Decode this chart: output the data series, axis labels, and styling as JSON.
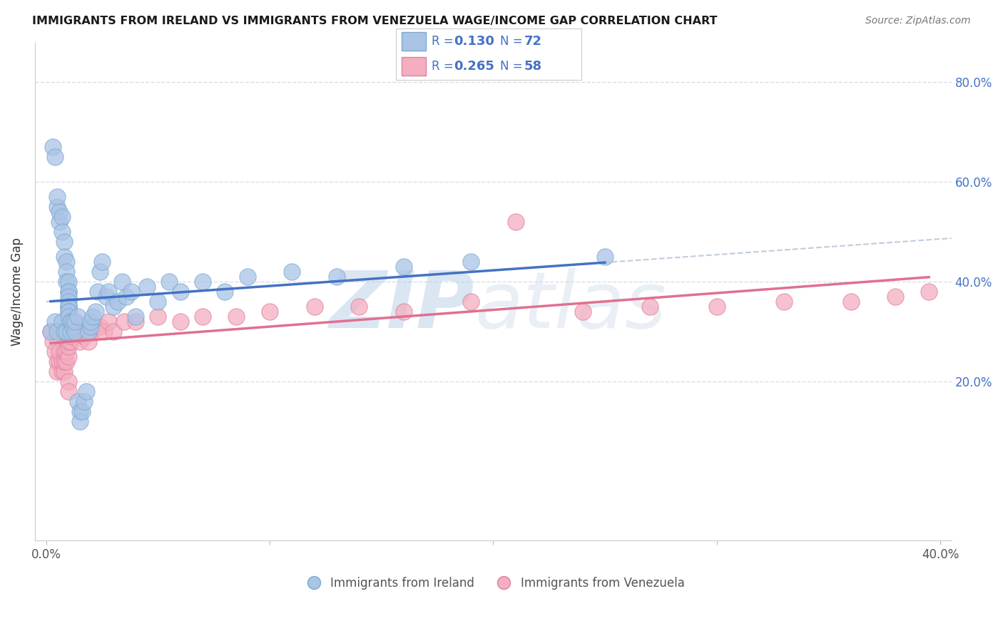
{
  "title": "IMMIGRANTS FROM IRELAND VS IMMIGRANTS FROM VENEZUELA WAGE/INCOME GAP CORRELATION CHART",
  "source": "Source: ZipAtlas.com",
  "ylabel": "Wage/Income Gap",
  "legend_label1": "Immigrants from Ireland",
  "legend_label2": "Immigrants from Venezuela",
  "legend_R1": "0.130",
  "legend_N1": "72",
  "legend_R2": "0.265",
  "legend_N2": "58",
  "color_ireland_fill": "#aac4e6",
  "color_ireland_edge": "#7aaad0",
  "color_venezuela_fill": "#f4aec0",
  "color_venezuela_edge": "#e080a0",
  "color_line_ireland": "#4472c4",
  "color_line_venezuela": "#e07090",
  "color_legend_text": "#4472c4",
  "color_dashed": "#b8c8d8",
  "xlim": [
    -0.005,
    0.405
  ],
  "ylim": [
    -0.12,
    0.88
  ],
  "xticks": [
    0.0,
    0.1,
    0.2,
    0.3,
    0.4
  ],
  "xtick_labels": [
    "0.0%",
    "",
    "",
    "",
    "40.0%"
  ],
  "ytick_positions": [
    0.2,
    0.4,
    0.6,
    0.8
  ],
  "ytick_labels": [
    "20.0%",
    "40.0%",
    "60.0%",
    "80.0%"
  ],
  "grid_color": "#d8dde8",
  "ireland_x": [
    0.002,
    0.003,
    0.004,
    0.004,
    0.005,
    0.005,
    0.005,
    0.006,
    0.006,
    0.007,
    0.007,
    0.007,
    0.008,
    0.008,
    0.008,
    0.009,
    0.009,
    0.009,
    0.009,
    0.01,
    0.01,
    0.01,
    0.01,
    0.01,
    0.01,
    0.01,
    0.01,
    0.01,
    0.01,
    0.01,
    0.011,
    0.011,
    0.011,
    0.012,
    0.012,
    0.013,
    0.013,
    0.014,
    0.014,
    0.015,
    0.015,
    0.016,
    0.017,
    0.018,
    0.019,
    0.02,
    0.02,
    0.021,
    0.022,
    0.023,
    0.024,
    0.025,
    0.027,
    0.028,
    0.03,
    0.032,
    0.034,
    0.036,
    0.038,
    0.04,
    0.045,
    0.05,
    0.055,
    0.06,
    0.07,
    0.08,
    0.09,
    0.11,
    0.13,
    0.16,
    0.19,
    0.25
  ],
  "ireland_y": [
    0.3,
    0.67,
    0.65,
    0.32,
    0.55,
    0.57,
    0.3,
    0.52,
    0.54,
    0.53,
    0.5,
    0.32,
    0.48,
    0.45,
    0.3,
    0.44,
    0.42,
    0.4,
    0.3,
    0.4,
    0.38,
    0.38,
    0.37,
    0.36,
    0.35,
    0.35,
    0.35,
    0.34,
    0.34,
    0.33,
    0.32,
    0.32,
    0.3,
    0.31,
    0.32,
    0.3,
    0.32,
    0.33,
    0.16,
    0.14,
    0.12,
    0.14,
    0.16,
    0.18,
    0.3,
    0.31,
    0.32,
    0.33,
    0.34,
    0.38,
    0.42,
    0.44,
    0.37,
    0.38,
    0.35,
    0.36,
    0.4,
    0.37,
    0.38,
    0.33,
    0.39,
    0.36,
    0.4,
    0.38,
    0.4,
    0.38,
    0.41,
    0.42,
    0.41,
    0.43,
    0.44,
    0.45
  ],
  "venezuela_x": [
    0.002,
    0.003,
    0.004,
    0.005,
    0.005,
    0.006,
    0.006,
    0.007,
    0.007,
    0.008,
    0.008,
    0.008,
    0.009,
    0.009,
    0.01,
    0.01,
    0.01,
    0.01,
    0.01,
    0.011,
    0.011,
    0.012,
    0.012,
    0.013,
    0.013,
    0.014,
    0.015,
    0.016,
    0.017,
    0.018,
    0.019,
    0.02,
    0.022,
    0.024,
    0.026,
    0.028,
    0.03,
    0.035,
    0.04,
    0.05,
    0.06,
    0.07,
    0.085,
    0.1,
    0.12,
    0.14,
    0.16,
    0.19,
    0.21,
    0.24,
    0.27,
    0.3,
    0.33,
    0.36,
    0.38,
    0.395,
    0.01,
    0.01
  ],
  "venezuela_y": [
    0.3,
    0.28,
    0.26,
    0.24,
    0.22,
    0.24,
    0.26,
    0.22,
    0.24,
    0.22,
    0.24,
    0.26,
    0.24,
    0.26,
    0.25,
    0.27,
    0.28,
    0.29,
    0.3,
    0.28,
    0.3,
    0.29,
    0.31,
    0.3,
    0.32,
    0.3,
    0.28,
    0.3,
    0.29,
    0.3,
    0.28,
    0.3,
    0.31,
    0.31,
    0.3,
    0.32,
    0.3,
    0.32,
    0.32,
    0.33,
    0.32,
    0.33,
    0.33,
    0.34,
    0.35,
    0.35,
    0.34,
    0.36,
    0.52,
    0.34,
    0.35,
    0.35,
    0.36,
    0.36,
    0.37,
    0.38,
    0.2,
    0.18
  ],
  "watermark_zip": "ZIP",
  "watermark_atlas": "atlas"
}
